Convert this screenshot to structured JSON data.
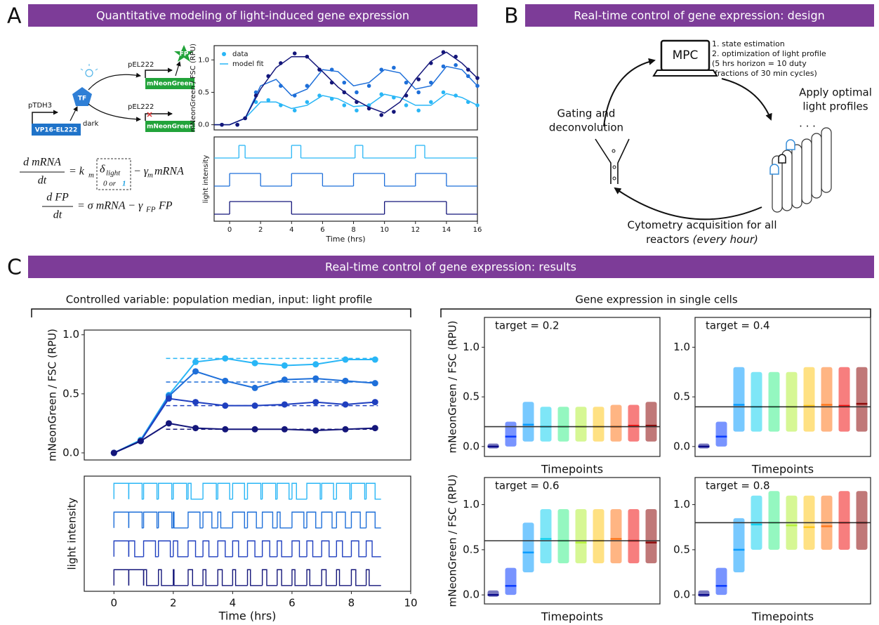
{
  "panel_labels": [
    "A",
    "B",
    "C"
  ],
  "banners": [
    "Quantitative modeling of light-induced gene expression",
    "Real-time control of gene expression: design",
    "Real-time control of gene expression: results"
  ],
  "panel_a": {
    "promoter_1": "pTDH3",
    "gene_1": "VP16-EL222",
    "tf": "TF",
    "dark": "dark",
    "promoter_2": "pEL222",
    "gene_2": "mNeonGreen",
    "promoter_3": "pEL222",
    "gene_3": "mNeonGreen",
    "fp": "FP",
    "eq1": {
      "num": "d mRNA",
      "den": "dt",
      "k": "= k",
      "k_sub": "m",
      "delta": "δ",
      "delta_sub": "light",
      "gamma": "− γ",
      "gamma_sub": "m",
      "tail": "mRNA",
      "switch_off": "0 or",
      "switch_on": "1"
    },
    "eq2": {
      "num": "d FP",
      "den": "dt",
      "rhs": "= σ mRNA − γ",
      "gamma_sub": "FP",
      "tail": "FP"
    }
  },
  "panel_b": {
    "controller": "MPC",
    "steps": [
      "1. state estimation",
      "2. optimization of light profile",
      "(5 hrs horizon = 10 duty",
      "fractions of 30 min cycles)"
    ],
    "left": [
      "Gating and",
      "deconvolution"
    ],
    "right": [
      "Apply optimal",
      "light profiles"
    ],
    "ellipsis": ". . .",
    "bottom": "Cytometry acquisition for all",
    "bottom_2": "reactors",
    "bottom_italic": "(every hour)"
  },
  "panel_c": {
    "left_title": "Controlled variable: population median, input: light profile",
    "right_title": "Gene expression in single cells"
  },
  "chart_data": [
    {
      "type": "fit",
      "ylabel": "mNeonGreen / FSC (RPU)",
      "legend": [
        "data",
        "model fit"
      ],
      "legend_loc": "upper left",
      "x": [
        -0.5,
        0.5,
        1,
        1.7,
        2.5,
        3.3,
        4.2,
        5,
        5.8,
        6.6,
        7.4,
        8.2,
        9,
        9.8,
        10.6,
        11.4,
        12.2,
        13,
        13.8,
        14.6,
        15.4,
        16
      ],
      "fit_x": [
        -1,
        0,
        1,
        2,
        3,
        4,
        5,
        6,
        7,
        8,
        9,
        10,
        11,
        12,
        13,
        14,
        15,
        16
      ],
      "xlim": [
        -1,
        16
      ],
      "ylim": [
        -0.08,
        1.22
      ],
      "yticks": [
        {
          "value": 0,
          "label": "0.0"
        },
        {
          "value": 0.5,
          "label": "0.5"
        },
        {
          "value": 1,
          "label": "1.0"
        }
      ],
      "series": [
        {
          "color": "#29b6f6",
          "values": [
            0,
            0,
            0.1,
            0.35,
            0.38,
            0.3,
            0.22,
            0.35,
            0.45,
            0.4,
            0.3,
            0.22,
            0.3,
            0.47,
            0.42,
            0.3,
            0.22,
            0.35,
            0.5,
            0.45,
            0.35,
            0.3
          ],
          "fit_values": [
            0,
            0,
            0.1,
            0.35,
            0.35,
            0.25,
            0.3,
            0.45,
            0.4,
            0.28,
            0.3,
            0.47,
            0.42,
            0.3,
            0.3,
            0.48,
            0.42,
            0.3
          ]
        },
        {
          "color": "#1e6fd9",
          "values": [
            0,
            0,
            0.1,
            0.5,
            0.75,
            0.6,
            0.45,
            0.6,
            0.85,
            0.85,
            0.65,
            0.5,
            0.6,
            0.85,
            0.88,
            0.65,
            0.5,
            0.65,
            0.9,
            0.92,
            0.75,
            0.6
          ],
          "fit_values": [
            0,
            0,
            0.1,
            0.6,
            0.7,
            0.45,
            0.55,
            0.85,
            0.82,
            0.6,
            0.65,
            0.85,
            0.8,
            0.55,
            0.6,
            0.9,
            0.85,
            0.6
          ]
        },
        {
          "color": "#14167a",
          "values": [
            0,
            0,
            0.1,
            0.45,
            0.75,
            0.95,
            1.1,
            1.05,
            0.85,
            0.65,
            0.5,
            0.35,
            0.25,
            0.15,
            0.2,
            0.45,
            0.7,
            0.95,
            1.12,
            1.05,
            0.85,
            0.72
          ],
          "fit_values": [
            0,
            0,
            0.1,
            0.55,
            0.88,
            1.05,
            1.05,
            0.82,
            0.58,
            0.4,
            0.27,
            0.18,
            0.35,
            0.7,
            0.98,
            1.12,
            0.95,
            0.72
          ]
        }
      ]
    },
    {
      "type": "step",
      "ylabel": "light intensity",
      "xlabel": "Time (hrs)",
      "xlim": [
        -1,
        16
      ],
      "xticks": [
        0,
        2,
        4,
        6,
        8,
        10,
        12,
        14,
        16
      ],
      "series": [
        {
          "color": "#29b6f6",
          "edges": [
            -1,
            0.6,
            1,
            4,
            4.6,
            8.1,
            8.6,
            12,
            12.6,
            16
          ],
          "values": [
            0,
            1,
            0,
            1,
            0,
            1,
            0,
            1,
            0
          ]
        },
        {
          "color": "#1e6fd9",
          "edges": [
            -1,
            0,
            2,
            4,
            6,
            8,
            10,
            12,
            14,
            16
          ],
          "values": [
            0,
            1,
            0,
            1,
            0,
            1,
            0,
            1,
            0
          ]
        },
        {
          "color": "#14167a",
          "edges": [
            -1,
            0,
            4,
            10,
            14,
            16
          ],
          "values": [
            0,
            1,
            0,
            1,
            0
          ]
        }
      ]
    },
    {
      "type": "line",
      "ylabel": "mNeonGreen / FSC (RPU)",
      "x": [
        0,
        0.9,
        1.85,
        2.75,
        3.75,
        4.75,
        5.75,
        6.8,
        7.8,
        8.8
      ],
      "xlim": [
        -1,
        10
      ],
      "ylim": [
        -0.06,
        1.04
      ],
      "yticks": [
        {
          "value": 0,
          "label": "0.0"
        },
        {
          "value": 0.5,
          "label": "0.5"
        },
        {
          "value": 1,
          "label": "1.0"
        }
      ],
      "series": [
        {
          "color": "#29b6f6",
          "target": 0.8,
          "values": [
            0,
            0.11,
            0.49,
            0.77,
            0.8,
            0.76,
            0.74,
            0.75,
            0.79,
            0.79
          ]
        },
        {
          "color": "#1e6fd9",
          "target": 0.6,
          "values": [
            0,
            0.1,
            0.48,
            0.69,
            0.61,
            0.55,
            0.62,
            0.63,
            0.61,
            0.59
          ]
        },
        {
          "color": "#1f3fbf",
          "target": 0.4,
          "values": [
            0,
            0.1,
            0.46,
            0.43,
            0.4,
            0.4,
            0.41,
            0.43,
            0.41,
            0.43
          ]
        },
        {
          "color": "#14167a",
          "target": 0.2,
          "values": [
            0,
            0.1,
            0.25,
            0.21,
            0.2,
            0.2,
            0.2,
            0.19,
            0.2,
            0.21
          ]
        }
      ]
    },
    {
      "type": "pwm",
      "ylabel": "light intensity",
      "xlabel": "Time (hrs)",
      "x": [
        0,
        0.5,
        1,
        1.5,
        2,
        2.5,
        3,
        3.5,
        4,
        4.5,
        5,
        5.5,
        6,
        6.5,
        7,
        7.5,
        8,
        8.5
      ],
      "xlim": [
        -1,
        10
      ],
      "xticks": [
        0,
        2,
        4,
        6,
        8,
        10
      ],
      "series": [
        {
          "color": "#29b6f6",
          "values": [
            1,
            0.9,
            0.9,
            0.9,
            0.9,
            0.2,
            0.9,
            0.8,
            0.8,
            0.9,
            0.9,
            0.8,
            0.3,
            0.9,
            0.8,
            0.9,
            0.9,
            0.6
          ]
        },
        {
          "color": "#1e6fd9",
          "values": [
            1,
            0.9,
            0.9,
            0.9,
            0.05,
            0.8,
            0.6,
            0.2,
            0.8,
            0.6,
            0.7,
            0.2,
            0.8,
            0.6,
            0.7,
            0.6,
            0.6,
            0.6
          ]
        },
        {
          "color": "#1f3fbf",
          "values": [
            1,
            0.4,
            0.8,
            0.8,
            0.3,
            0.5,
            0.4,
            0.5,
            0.4,
            0.5,
            0.5,
            0.3,
            0.5,
            0.4,
            0.5,
            0.4,
            0.5,
            0.4
          ]
        },
        {
          "color": "#14167a",
          "values": [
            1,
            1,
            0.2,
            0.2,
            0.05,
            0.3,
            0.2,
            0.3,
            0.2,
            0.2,
            0.3,
            0.3,
            0.2,
            0.2,
            0.3,
            0.2,
            0.3,
            0.2
          ]
        }
      ]
    },
    {
      "type": "strip",
      "title": "target = 0.2",
      "target": 0.2,
      "xlabel": "Timepoints",
      "ylabel": "mNeonGreen / FSC (RPU)",
      "ylim": [
        -0.1,
        1.3
      ],
      "yticks": [
        {
          "value": 0,
          "label": "0.0"
        },
        {
          "value": 0.5,
          "label": "0.5"
        },
        {
          "value": 1,
          "label": "1.0"
        }
      ],
      "colors": [
        "#0a0a8a",
        "#0a3cff",
        "#0a9cff",
        "#14d2f0",
        "#3cf08c",
        "#b4f03c",
        "#ffc81e",
        "#ff781e",
        "#f01414",
        "#8c0a0a"
      ],
      "median": [
        0,
        0.1,
        0.22,
        0.2,
        0.2,
        0.2,
        0.2,
        0.2,
        0.21,
        0.21
      ],
      "low": [
        -0.02,
        0,
        0.05,
        0.05,
        0.05,
        0.05,
        0.05,
        0.05,
        0.05,
        0.05
      ],
      "high": [
        0.03,
        0.25,
        0.45,
        0.4,
        0.4,
        0.4,
        0.4,
        0.42,
        0.42,
        0.45
      ]
    },
    {
      "type": "strip",
      "title": "target = 0.4",
      "target": 0.4,
      "xlabel": "Timepoints",
      "ylim": [
        -0.1,
        1.3
      ],
      "yticks": [
        {
          "value": 0,
          "label": "0.0"
        },
        {
          "value": 0.5,
          "label": "0.5"
        },
        {
          "value": 1,
          "label": "1.0"
        }
      ],
      "colors": [
        "#0a0a8a",
        "#0a3cff",
        "#0a9cff",
        "#14d2f0",
        "#3cf08c",
        "#b4f03c",
        "#ffc81e",
        "#ff781e",
        "#f01414",
        "#8c0a0a"
      ],
      "median": [
        0,
        0.1,
        0.42,
        0.4,
        0.4,
        0.4,
        0.41,
        0.42,
        0.41,
        0.43
      ],
      "low": [
        -0.02,
        0,
        0.15,
        0.15,
        0.15,
        0.15,
        0.15,
        0.15,
        0.15,
        0.15
      ],
      "high": [
        0.03,
        0.25,
        0.8,
        0.75,
        0.75,
        0.75,
        0.8,
        0.8,
        0.8,
        0.8
      ]
    },
    {
      "type": "strip",
      "title": "target = 0.6",
      "target": 0.6,
      "xlabel": "Timepoints",
      "ylabel": "mNeonGreen / FSC (RPU)",
      "ylim": [
        -0.1,
        1.3
      ],
      "yticks": [
        {
          "value": 0,
          "label": "0.0"
        },
        {
          "value": 0.5,
          "label": "0.5"
        },
        {
          "value": 1,
          "label": "1.0"
        }
      ],
      "colors": [
        "#0a0a8a",
        "#0a3cff",
        "#0a9cff",
        "#14d2f0",
        "#3cf08c",
        "#b4f03c",
        "#ffc81e",
        "#ff781e",
        "#f01414",
        "#8c0a0a"
      ],
      "median": [
        0,
        0.1,
        0.47,
        0.62,
        0.6,
        0.58,
        0.6,
        0.62,
        0.6,
        0.58
      ],
      "low": [
        -0.02,
        0,
        0.25,
        0.35,
        0.35,
        0.35,
        0.35,
        0.35,
        0.35,
        0.35
      ],
      "high": [
        0.05,
        0.3,
        0.8,
        0.95,
        0.95,
        0.95,
        0.95,
        0.95,
        0.95,
        0.95
      ]
    },
    {
      "type": "strip",
      "title": "target = 0.8",
      "target": 0.8,
      "xlabel": "Timepoints",
      "ylim": [
        -0.1,
        1.3
      ],
      "yticks": [
        {
          "value": 0,
          "label": "0.0"
        },
        {
          "value": 0.5,
          "label": "0.5"
        },
        {
          "value": 1,
          "label": "1.0"
        }
      ],
      "colors": [
        "#0a0a8a",
        "#0a3cff",
        "#0a9cff",
        "#14d2f0",
        "#3cf08c",
        "#b4f03c",
        "#ffc81e",
        "#ff781e",
        "#f01414",
        "#8c0a0a"
      ],
      "median": [
        0,
        0.1,
        0.5,
        0.78,
        0.8,
        0.77,
        0.75,
        0.76,
        0.8,
        0.8
      ],
      "low": [
        -0.02,
        0,
        0.25,
        0.5,
        0.5,
        0.5,
        0.5,
        0.5,
        0.5,
        0.5
      ],
      "high": [
        0.05,
        0.3,
        0.85,
        1.1,
        1.15,
        1.1,
        1.1,
        1.1,
        1.15,
        1.15
      ]
    }
  ]
}
